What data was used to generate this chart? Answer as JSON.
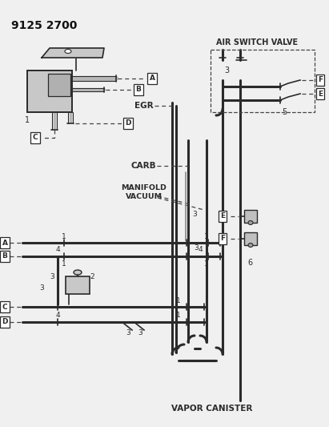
{
  "title": "9125 2700",
  "bg_color": "#f0f0f0",
  "line_color": "#2a2a2a",
  "dash_color": "#444444",
  "labels": {
    "air_switch_valve": "AIR SWITCH VALVE",
    "egr": "EGR",
    "carb": "CARB",
    "manifold_vacuum": "MANIFOLD\nVACUUM",
    "vapor_canister": "VAPOR CANISTER"
  },
  "hose_lw": 2.2,
  "thin_lw": 1.2,
  "dash_lw": 0.9
}
